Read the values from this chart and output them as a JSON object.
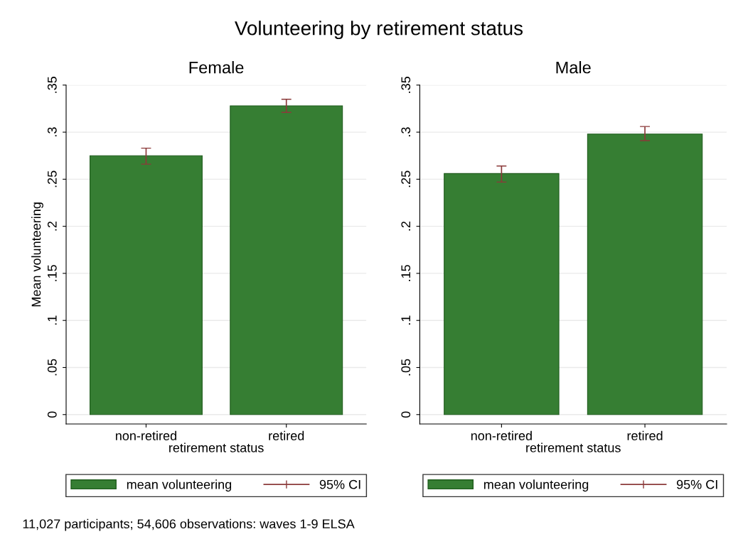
{
  "chart_data": [
    {
      "type": "bar",
      "title": "Female",
      "xlabel": "retirement status",
      "ylabel": "Mean volunteering",
      "categories": [
        "non-retired",
        "retired"
      ],
      "series": [
        {
          "name": "mean volunteering",
          "color": "#367e33",
          "values": [
            0.275,
            0.328
          ],
          "errors": [
            [
              0.266,
              0.283
            ],
            [
              0.321,
              0.335
            ]
          ]
        }
      ],
      "ylim": [
        -0.01,
        0.35
      ],
      "yticks": [
        0,
        {
          "value": 0.05,
          "label": ".05"
        },
        {
          "value": 0.1,
          "label": ".1"
        },
        {
          "value": 0.15,
          "label": ".15"
        },
        {
          "value": 0.2,
          "label": ".2"
        },
        {
          "value": 0.25,
          "label": ".25"
        },
        {
          "value": 0.3,
          "label": ".3"
        },
        {
          "value": 0.35,
          "label": ".35"
        }
      ],
      "grid": "y",
      "legend": "bottom",
      "annotations": [
        "95% CI",
        "Volunteering by retirement status",
        "11,027 participants; 54,606 observations: waves 1-9 ELSA"
      ]
    },
    {
      "type": "bar",
      "title": "Male",
      "xlabel": "retirement status",
      "categories": [
        "non-retired",
        "retired"
      ],
      "series": [
        {
          "name": "mean volunteering",
          "color": "#367e33",
          "values": [
            0.256,
            0.298
          ],
          "errors": [
            [
              0.247,
              0.264
            ],
            [
              0.291,
              0.306
            ]
          ]
        }
      ],
      "ylim": [
        -0.01,
        0.35
      ],
      "yticks": [
        0,
        {
          "value": 0.05,
          "label": ".05"
        },
        {
          "value": 0.1,
          "label": ".1"
        },
        {
          "value": 0.15,
          "label": ".15"
        },
        {
          "value": 0.2,
          "label": ".2"
        },
        {
          "value": 0.25,
          "label": ".25"
        },
        {
          "value": 0.3,
          "label": ".3"
        },
        {
          "value": 0.35,
          "label": ".35"
        }
      ],
      "grid": "y",
      "legend": "bottom",
      "annotations": [
        "95% CI"
      ]
    }
  ]
}
